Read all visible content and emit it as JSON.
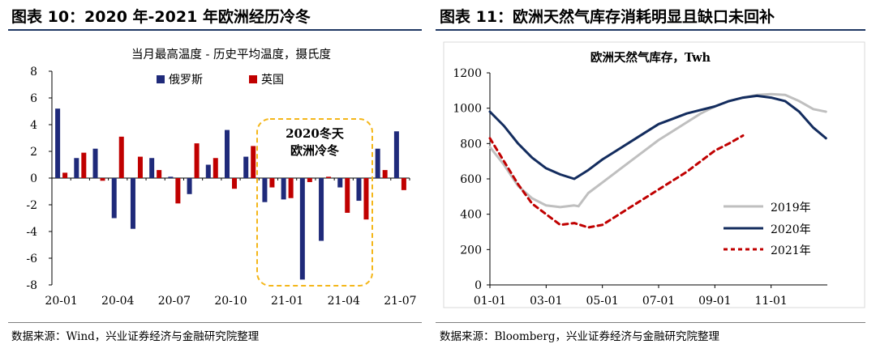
{
  "left_panel": {
    "figure_title": "图表 10：2020 年-2021 年欧洲经历冷冬",
    "source": "数据来源：Wind，兴业证券经济与金融研究院整理",
    "annotation_text": [
      "2020冬天",
      "欧洲冷冬"
    ],
    "colors": {
      "russia": "#1f2a7a",
      "uk": "#c00000",
      "annotation_border": "#f4b619",
      "rule": "#1f3763"
    }
  },
  "right_panel": {
    "figure_title": "图表 11：欧洲天然气库存消耗明显且缺口未回补",
    "source": "数据来源：Bloomberg，兴业证券经济与金融研究院整理",
    "colors": {
      "y2019": "#bfbfbf",
      "y2020": "#132c5e",
      "y2021": "#c00000"
    }
  },
  "chart_data": [
    {
      "type": "bar",
      "title": "当月最高温度 - 历史平均温度，摄氏度",
      "legend_position": "top",
      "ylim": [
        -8,
        8
      ],
      "yticks": [
        "8",
        "6",
        "4",
        "2",
        "0",
        "-2",
        "-4",
        "-6",
        "-8"
      ],
      "xtick_labels": [
        "20-01",
        "20-04",
        "20-07",
        "20-10",
        "21-01",
        "21-04",
        "21-07"
      ],
      "categories": [
        "20-01",
        "20-02",
        "20-03",
        "20-04",
        "20-05",
        "20-06",
        "20-07",
        "20-08",
        "20-09",
        "20-10",
        "20-11",
        "20-12",
        "21-01",
        "21-02",
        "21-03",
        "21-04",
        "21-05",
        "21-06",
        "21-07"
      ],
      "series": [
        {
          "name": "俄罗斯",
          "values": [
            5.2,
            1.5,
            2.2,
            -3.0,
            -3.8,
            1.5,
            0.1,
            -1.2,
            1.0,
            3.6,
            1.6,
            -1.8,
            -1.6,
            -7.6,
            -4.7,
            -0.7,
            -1.7,
            2.2,
            3.5
          ]
        },
        {
          "name": "英国",
          "values": [
            0.4,
            1.9,
            -0.2,
            3.1,
            1.6,
            0.6,
            -1.9,
            2.6,
            1.5,
            -0.8,
            2.4,
            -0.7,
            -1.5,
            -0.3,
            0.1,
            -2.6,
            -3.1,
            0.6,
            -0.9
          ]
        }
      ]
    },
    {
      "type": "line",
      "title": "欧洲天然气库存，Twh",
      "legend_position": "bottom-right",
      "ylim": [
        0,
        1200
      ],
      "yticks": [
        "1200",
        "1000",
        "800",
        "600",
        "400",
        "200",
        "0"
      ],
      "xtick_labels": [
        "01-01",
        "03-01",
        "05-01",
        "07-01",
        "09-01",
        "11-01"
      ],
      "x_ticks_month": [
        1,
        3,
        5,
        7,
        9,
        11
      ],
      "series": [
        {
          "name": "2019年",
          "style": "solid",
          "x_month": [
            1.0,
            1.5,
            2.0,
            2.5,
            3.0,
            3.5,
            4.0,
            4.15,
            4.5,
            5.0,
            5.5,
            6.0,
            6.5,
            7.0,
            7.5,
            8.0,
            8.5,
            9.0,
            9.5,
            10.0,
            10.5,
            11.0,
            11.5,
            12.0,
            12.5,
            12.95
          ],
          "y": [
            780,
            680,
            560,
            490,
            450,
            440,
            450,
            445,
            520,
            580,
            640,
            700,
            760,
            820,
            870,
            920,
            970,
            1010,
            1040,
            1060,
            1075,
            1080,
            1075,
            1040,
            995,
            980
          ]
        },
        {
          "name": "2020年",
          "style": "solid",
          "x_month": [
            1.0,
            1.5,
            2.0,
            2.5,
            3.0,
            3.5,
            4.0,
            4.5,
            5.0,
            5.5,
            6.0,
            6.5,
            7.0,
            7.5,
            8.0,
            8.5,
            9.0,
            9.5,
            10.0,
            10.5,
            11.0,
            11.5,
            12.0,
            12.5,
            12.95
          ],
          "y": [
            980,
            900,
            800,
            720,
            660,
            625,
            600,
            650,
            710,
            760,
            810,
            860,
            910,
            940,
            970,
            990,
            1010,
            1040,
            1060,
            1070,
            1060,
            1040,
            980,
            890,
            830
          ]
        },
        {
          "name": "2021年",
          "style": "dashed",
          "x_month": [
            1.0,
            1.5,
            2.0,
            2.5,
            3.0,
            3.5,
            4.0,
            4.5,
            5.0,
            5.5,
            6.0,
            6.5,
            7.0,
            7.5,
            8.0,
            8.5,
            9.0,
            9.5,
            10.0
          ],
          "y": [
            830,
            700,
            570,
            460,
            400,
            340,
            350,
            325,
            340,
            390,
            440,
            490,
            540,
            590,
            640,
            700,
            760,
            800,
            845
          ]
        }
      ]
    }
  ]
}
